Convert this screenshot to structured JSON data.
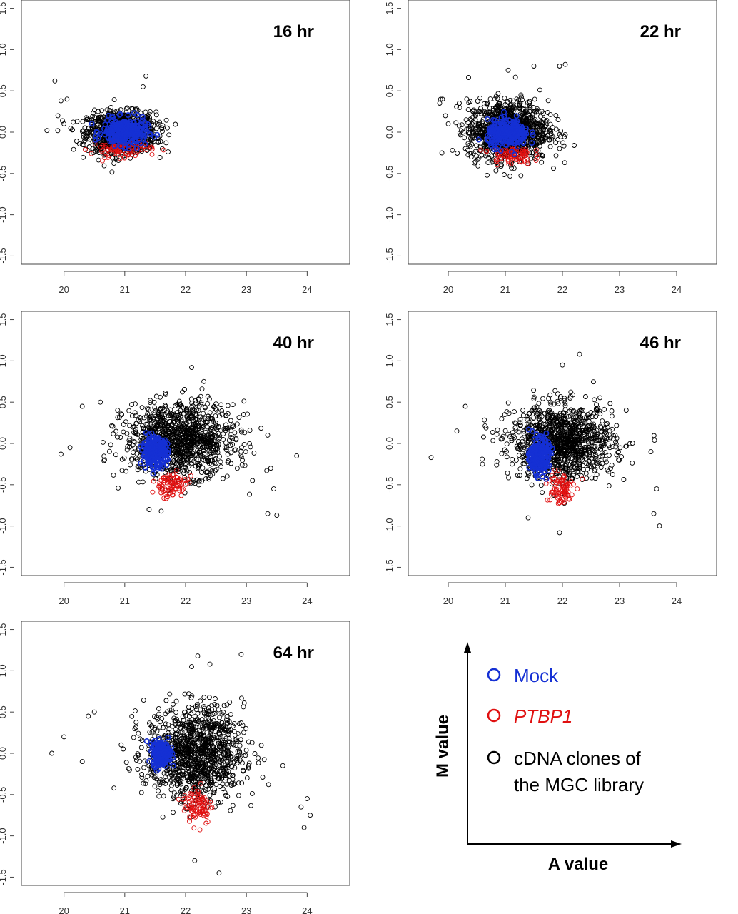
{
  "chart_data": {
    "type": "scatter",
    "panels": [
      {
        "title": "16 hr",
        "xlim": [
          19.3,
          24.7
        ],
        "ylim": [
          -1.6,
          1.6
        ],
        "xticks": [
          20,
          21,
          22,
          23,
          24
        ],
        "yticks": [
          -1.5,
          -1.0,
          -0.5,
          0.0,
          0.5,
          1.0,
          1.5
        ],
        "clouds": {
          "MGC": {
            "center": [
              20.95,
              0.0
            ],
            "spread": [
              0.28,
              0.12
            ],
            "outliers": [
              [
                19.72,
                0.02
              ],
              [
                19.85,
                0.62
              ],
              [
                19.95,
                0.38
              ],
              [
                20.05,
                0.4
              ],
              [
                19.9,
                0.2
              ],
              [
                20.0,
                0.1
              ],
              [
                21.35,
                0.68
              ],
              [
                21.3,
                0.55
              ],
              [
                21.7,
                0.05
              ],
              [
                20.3,
                -0.15
              ]
            ]
          },
          "Mock": {
            "center": [
              21.0,
              0.0
            ],
            "spread": [
              0.18,
              0.08
            ]
          },
          "PTBP1": {
            "center": [
              20.95,
              -0.2
            ],
            "spread": [
              0.25,
              0.05
            ]
          }
        }
      },
      {
        "title": "22 hr",
        "xlim": [
          19.3,
          24.7
        ],
        "ylim": [
          -1.6,
          1.6
        ],
        "xticks": [
          20,
          21,
          22,
          23,
          24
        ],
        "yticks": [
          -1.5,
          -1.0,
          -0.5,
          0.0,
          0.5,
          1.0,
          1.5
        ],
        "clouds": {
          "MGC": {
            "center": [
              21.05,
              0.02
            ],
            "spread": [
              0.35,
              0.18
            ],
            "outliers": [
              [
                19.85,
                0.35
              ],
              [
                19.9,
                0.4
              ],
              [
                20.0,
                0.1
              ],
              [
                19.95,
                0.2
              ],
              [
                21.5,
                0.8
              ],
              [
                21.95,
                0.8
              ],
              [
                22.05,
                0.82
              ],
              [
                21.05,
                0.75
              ],
              [
                21.95,
                -0.2
              ],
              [
                20.3,
                -0.2
              ]
            ]
          },
          "Mock": {
            "center": [
              21.05,
              -0.02
            ],
            "spread": [
              0.18,
              0.08
            ]
          },
          "PTBP1": {
            "center": [
              21.1,
              -0.27
            ],
            "spread": [
              0.18,
              0.06
            ]
          }
        }
      },
      {
        "title": "40 hr",
        "xlim": [
          19.3,
          24.7
        ],
        "ylim": [
          -1.6,
          1.6
        ],
        "xticks": [
          20,
          21,
          22,
          23,
          24
        ],
        "yticks": [
          -1.5,
          -1.0,
          -0.5,
          0.0,
          0.5,
          1.0,
          1.5
        ],
        "clouds": {
          "MGC": {
            "center": [
              21.9,
              0.05
            ],
            "spread": [
              0.45,
              0.22
            ],
            "outliers": [
              [
                19.95,
                -0.13
              ],
              [
                20.1,
                -0.05
              ],
              [
                20.3,
                0.45
              ],
              [
                20.6,
                0.5
              ],
              [
                22.1,
                0.92
              ],
              [
                22.3,
                0.75
              ],
              [
                23.35,
                0.1
              ],
              [
                23.4,
                -0.3
              ],
              [
                23.45,
                -0.55
              ],
              [
                23.35,
                -0.85
              ],
              [
                23.5,
                -0.87
              ],
              [
                21.4,
                -0.8
              ],
              [
                21.6,
                -0.82
              ],
              [
                23.1,
                -0.45
              ]
            ]
          },
          "Mock": {
            "center": [
              21.5,
              -0.1
            ],
            "spread": [
              0.1,
              0.08
            ]
          },
          "PTBP1": {
            "center": [
              21.75,
              -0.5
            ],
            "spread": [
              0.14,
              0.08
            ]
          }
        }
      },
      {
        "title": "46 hr",
        "xlim": [
          19.3,
          24.7
        ],
        "ylim": [
          -1.6,
          1.6
        ],
        "xticks": [
          20,
          21,
          22,
          23,
          24
        ],
        "yticks": [
          -1.5,
          -1.0,
          -0.5,
          0.0,
          0.5,
          1.0,
          1.5
        ],
        "clouds": {
          "MGC": {
            "center": [
              22.0,
              0.02
            ],
            "spread": [
              0.45,
              0.22
            ],
            "outliers": [
              [
                19.7,
                -0.17
              ],
              [
                20.3,
                0.45
              ],
              [
                20.15,
                0.15
              ],
              [
                22.3,
                1.08
              ],
              [
                22.0,
                0.95
              ],
              [
                23.65,
                -0.55
              ],
              [
                23.7,
                -1.0
              ],
              [
                23.6,
                -0.85
              ],
              [
                23.55,
                -0.1
              ],
              [
                21.95,
                -1.08
              ],
              [
                21.4,
                -0.9
              ],
              [
                20.6,
                -0.25
              ]
            ]
          },
          "Mock": {
            "center": [
              21.6,
              -0.15
            ],
            "spread": [
              0.08,
              0.1
            ]
          },
          "PTBP1": {
            "center": [
              21.95,
              -0.55
            ],
            "spread": [
              0.12,
              0.1
            ]
          }
        }
      },
      {
        "title": "64 hr",
        "xlim": [
          19.3,
          24.7
        ],
        "ylim": [
          -1.6,
          1.6
        ],
        "xticks": [
          20,
          21,
          22,
          23,
          24
        ],
        "yticks": [
          -1.5,
          -1.0,
          -0.5,
          0.0,
          0.5,
          1.0,
          1.5
        ],
        "clouds": {
          "MGC": {
            "center": [
              22.15,
              0.0
            ],
            "spread": [
              0.4,
              0.28
            ],
            "outliers": [
              [
                19.8,
                0.0
              ],
              [
                20.0,
                0.2
              ],
              [
                20.4,
                0.45
              ],
              [
                20.5,
                0.5
              ],
              [
                20.3,
                -0.1
              ],
              [
                22.2,
                1.18
              ],
              [
                22.1,
                1.05
              ],
              [
                22.4,
                1.08
              ],
              [
                22.55,
                -1.45
              ],
              [
                22.15,
                -1.3
              ],
              [
                24.0,
                -0.55
              ],
              [
                24.05,
                -0.75
              ],
              [
                23.95,
                -0.9
              ],
              [
                23.9,
                -0.65
              ],
              [
                23.6,
                -0.15
              ]
            ]
          },
          "Mock": {
            "center": [
              21.6,
              0.0
            ],
            "spread": [
              0.07,
              0.07
            ]
          },
          "PTBP1": {
            "center": [
              22.2,
              -0.62
            ],
            "spread": [
              0.12,
              0.12
            ]
          }
        }
      }
    ],
    "legend": {
      "items": [
        {
          "label": "Mock",
          "color": "#1530d4",
          "italic": false
        },
        {
          "label": "PTBP1",
          "color": "#e01010",
          "italic": true
        },
        {
          "label_lines": [
            "cDNA clones of",
            "the MGC library"
          ],
          "color": "#000000",
          "italic": false
        }
      ],
      "ylabel": "M value",
      "xlabel": "A value"
    },
    "colors": {
      "MGC": "#000000",
      "Mock": "#1530d4",
      "PTBP1": "#e01010"
    }
  }
}
